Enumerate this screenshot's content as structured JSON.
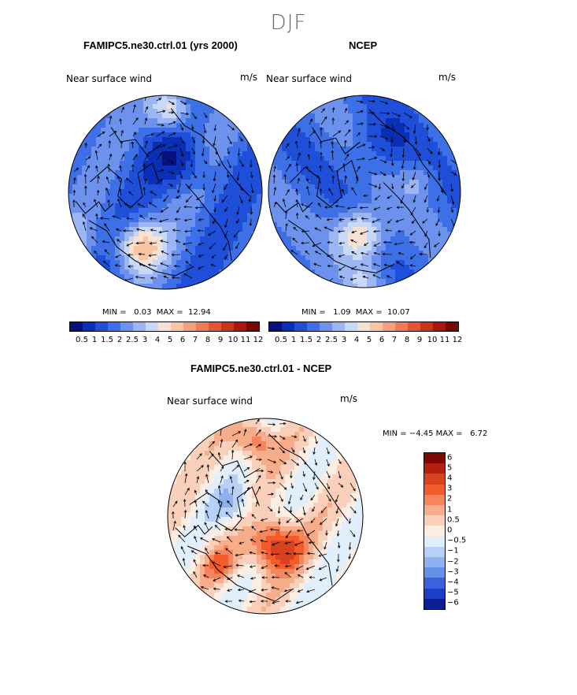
{
  "figure": {
    "season": "DJF",
    "units": "m/s"
  },
  "colors": {
    "wind_scale": [
      "#08107f",
      "#0a2fb4",
      "#1f4fd8",
      "#3d6fe6",
      "#6c92ee",
      "#9cb6f3",
      "#c8d8f7",
      "#f6e2d4",
      "#f8c4a3",
      "#f4a07c",
      "#ef7a55",
      "#e25535",
      "#cc3418",
      "#a8170c",
      "#7c0804"
    ],
    "diff_scale": [
      "#7c0804",
      "#b3200f",
      "#d8421f",
      "#f45a2a",
      "#f4855c",
      "#f7ac8a",
      "#fbd0ba",
      "#fdeee4",
      "#e1eefc",
      "#b9d0f6",
      "#8fb0ef",
      "#6690e8",
      "#3a62de",
      "#1a3ec6",
      "#0c1d96"
    ]
  },
  "chart_data": [
    {
      "type": "heatmap",
      "projection": "north polar stereographic",
      "title": "FAMIPC5.ne30.ctrl.01 (yrs 2000)",
      "variable": "Near surface wind",
      "units": "m/s",
      "min_label": "MIN =",
      "min": "0.03",
      "max_label": "MAX =",
      "max": "12.94",
      "levels": [
        "0.5",
        "1",
        "1.5",
        "2",
        "2.5",
        "3",
        "4",
        "5",
        "6",
        "7",
        "8",
        "9",
        "10",
        "11",
        "12"
      ]
    },
    {
      "type": "heatmap",
      "projection": "north polar stereographic",
      "title": "NCEP",
      "variable": "Near surface wind",
      "units": "m/s",
      "min_label": "MIN =",
      "min": "1.09",
      "max_label": "MAX =",
      "max": "10.07",
      "levels": [
        "0.5",
        "1",
        "1.5",
        "2",
        "2.5",
        "3",
        "4",
        "5",
        "6",
        "7",
        "8",
        "9",
        "10",
        "11",
        "12"
      ]
    },
    {
      "type": "heatmap",
      "projection": "north polar stereographic",
      "title": "FAMIPC5.ne30.ctrl.01 - NCEP",
      "variable": "Near surface wind",
      "units": "m/s",
      "min_label": "MIN =",
      "min": "−4.45",
      "max_label": "MAX =",
      "max": "6.72",
      "levels": [
        "6",
        "5",
        "4",
        "3",
        "2",
        "1",
        "0.5",
        "0",
        "−0.5",
        "−1",
        "−2",
        "−3",
        "−4",
        "−5",
        "−6"
      ]
    }
  ]
}
